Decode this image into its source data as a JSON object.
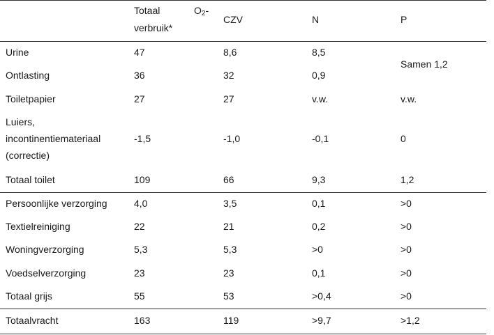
{
  "headers": {
    "col1_line1": "Totaal",
    "col1_o2": "O",
    "col1_o2_sub": "2",
    "col1_o2_dash": "-",
    "col1_line2": "verbruik*",
    "col2": "CZV",
    "col3": "N",
    "col4": "P"
  },
  "rows": {
    "urine": {
      "label": "Urine",
      "o2": "47",
      "czv": "8,6",
      "n": "8,5"
    },
    "ontlasting": {
      "label": "Ontlasting",
      "o2": "36",
      "czv": "32",
      "n": "0,9"
    },
    "p_merged": "Samen 1,2",
    "toiletpapier": {
      "label": "Toiletpapier",
      "o2": "27",
      "czv": "27",
      "n": "v.w.",
      "p": "v.w."
    },
    "luiers": {
      "label_line1": "Luiers,",
      "label_line2": "incontinentiemateriaal",
      "label_line3": "(correctie)",
      "o2": "-1,5",
      "czv": "-1,0",
      "n": "-0,1",
      "p": "0"
    },
    "totaal_toilet": {
      "label": "Totaal toilet",
      "o2": "109",
      "czv": "66",
      "n": "9,3",
      "p": "1,2"
    },
    "persoonlijk": {
      "label": "Persoonlijke verzorging",
      "o2": "4,0",
      "czv": "3,5",
      "n": "0,1",
      "p": ">0"
    },
    "textiel": {
      "label": "Textielreiniging",
      "o2": "22",
      "czv": "21",
      "n": "0,2",
      "p": ">0"
    },
    "woning": {
      "label": "Woningverzorging",
      "o2": "5,3",
      "czv": "5,3",
      "n": ">0",
      "p": ">0"
    },
    "voedsel": {
      "label": "Voedselverzorging",
      "o2": "23",
      "czv": "23",
      "n": "0,1",
      "p": ">0"
    },
    "totaal_grijs": {
      "label": "Totaal grijs",
      "o2": "55",
      "czv": "53",
      "n": ">0,4",
      "p": ">0"
    },
    "totaalvracht": {
      "label": "Totaalvracht",
      "o2": "163",
      "czv": "119",
      "n": ">9,7",
      "p": ">1,2"
    }
  }
}
